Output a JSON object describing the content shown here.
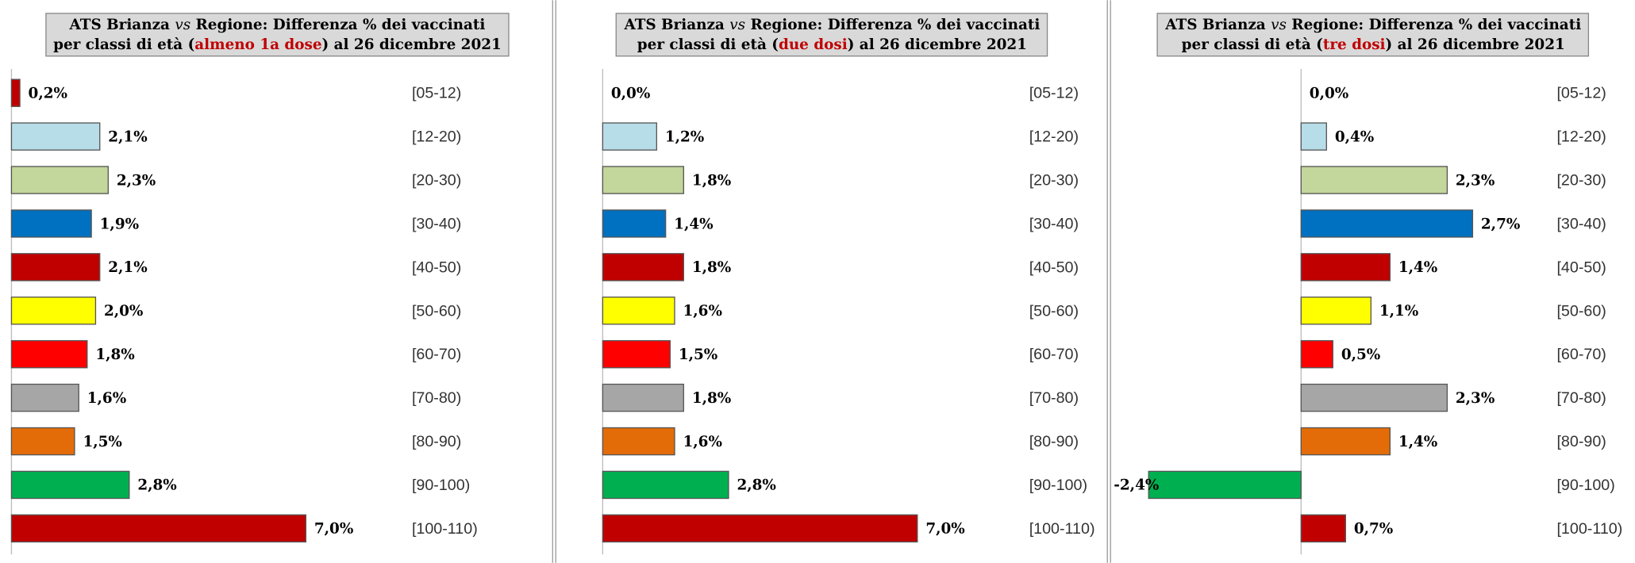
{
  "chart_data": [
    {
      "type": "barh",
      "title": {
        "line1": [
          "ATS Brianza ",
          "vs",
          " Regione: Differenza % dei vaccinati"
        ],
        "line2": [
          "per classi di età (",
          "almeno 1a dose",
          ") al 26 dicembre 2021"
        ]
      },
      "categories": [
        "[05-12)",
        "[12-20)",
        "[20-30)",
        "[30-40)",
        "[40-50)",
        "[50-60)",
        "[60-70)",
        "[70-80)",
        "[80-90)",
        "[90-100)",
        "[100-110)"
      ],
      "values": [
        0.2,
        2.1,
        2.3,
        1.9,
        2.1,
        2.0,
        1.8,
        1.6,
        1.5,
        2.8,
        7.0
      ],
      "value_labels": [
        "0,2%",
        "2,1%",
        "2,3%",
        "1,9%",
        "2,1%",
        "2,0%",
        "1,8%",
        "1,6%",
        "1,5%",
        "2,8%",
        "7,0%"
      ],
      "colors": [
        "#c00000",
        "#b7dde8",
        "#c3d69b",
        "#0070c0",
        "#c00000",
        "#ffff00",
        "#ff0000",
        "#a6a6a6",
        "#e36c09",
        "#00b050",
        "#c00000"
      ],
      "xlim": [
        0,
        9
      ]
    },
    {
      "type": "barh",
      "title": {
        "line1": [
          "ATS Brianza ",
          "vs",
          " Regione: Differenza % dei vaccinati"
        ],
        "line2": [
          "per classi di età (",
          "due dosi",
          ") al 26 dicembre 2021"
        ]
      },
      "categories": [
        "[05-12)",
        "[12-20)",
        "[20-30)",
        "[30-40)",
        "[40-50)",
        "[50-60)",
        "[60-70)",
        "[70-80)",
        "[80-90)",
        "[90-100)",
        "[100-110)"
      ],
      "values": [
        0.0,
        1.2,
        1.8,
        1.4,
        1.8,
        1.6,
        1.5,
        1.8,
        1.6,
        2.8,
        7.0
      ],
      "value_labels": [
        "0,0%",
        "1,2%",
        "1,8%",
        "1,4%",
        "1,8%",
        "1,6%",
        "1,5%",
        "1,8%",
        "1,6%",
        "2,8%",
        "7,0%"
      ],
      "colors": [
        "#c00000",
        "#b7dde8",
        "#c3d69b",
        "#0070c0",
        "#c00000",
        "#ffff00",
        "#ff0000",
        "#a6a6a6",
        "#e36c09",
        "#00b050",
        "#c00000"
      ],
      "xlim": [
        0,
        9
      ]
    },
    {
      "type": "barh",
      "title": {
        "line1": [
          "ATS Brianza ",
          "vs",
          " Regione: Differenza % dei vaccinati"
        ],
        "line2": [
          "per classi di età (",
          "tre dosi",
          ") al 26 dicembre 2021"
        ]
      },
      "categories": [
        "[05-12)",
        "[12-20)",
        "[20-30)",
        "[30-40)",
        "[40-50)",
        "[50-60)",
        "[60-70)",
        "[70-80)",
        "[80-90)",
        "[90-100)",
        "[100-110)"
      ],
      "values": [
        0.0,
        0.4,
        2.3,
        2.7,
        1.4,
        1.1,
        0.5,
        2.3,
        1.4,
        -2.4,
        0.7
      ],
      "value_labels": [
        "0,0%",
        "0,4%",
        "2,3%",
        "2,7%",
        "1,4%",
        "1,1%",
        "0,5%",
        "2,3%",
        "1,4%",
        "-2,4%",
        "0,7%"
      ],
      "colors": [
        "#c00000",
        "#b7dde8",
        "#c3d69b",
        "#0070c0",
        "#c00000",
        "#ffff00",
        "#ff0000",
        "#a6a6a6",
        "#e36c09",
        "#00b050",
        "#c00000"
      ],
      "xlim": [
        -3,
        3.5
      ]
    }
  ]
}
